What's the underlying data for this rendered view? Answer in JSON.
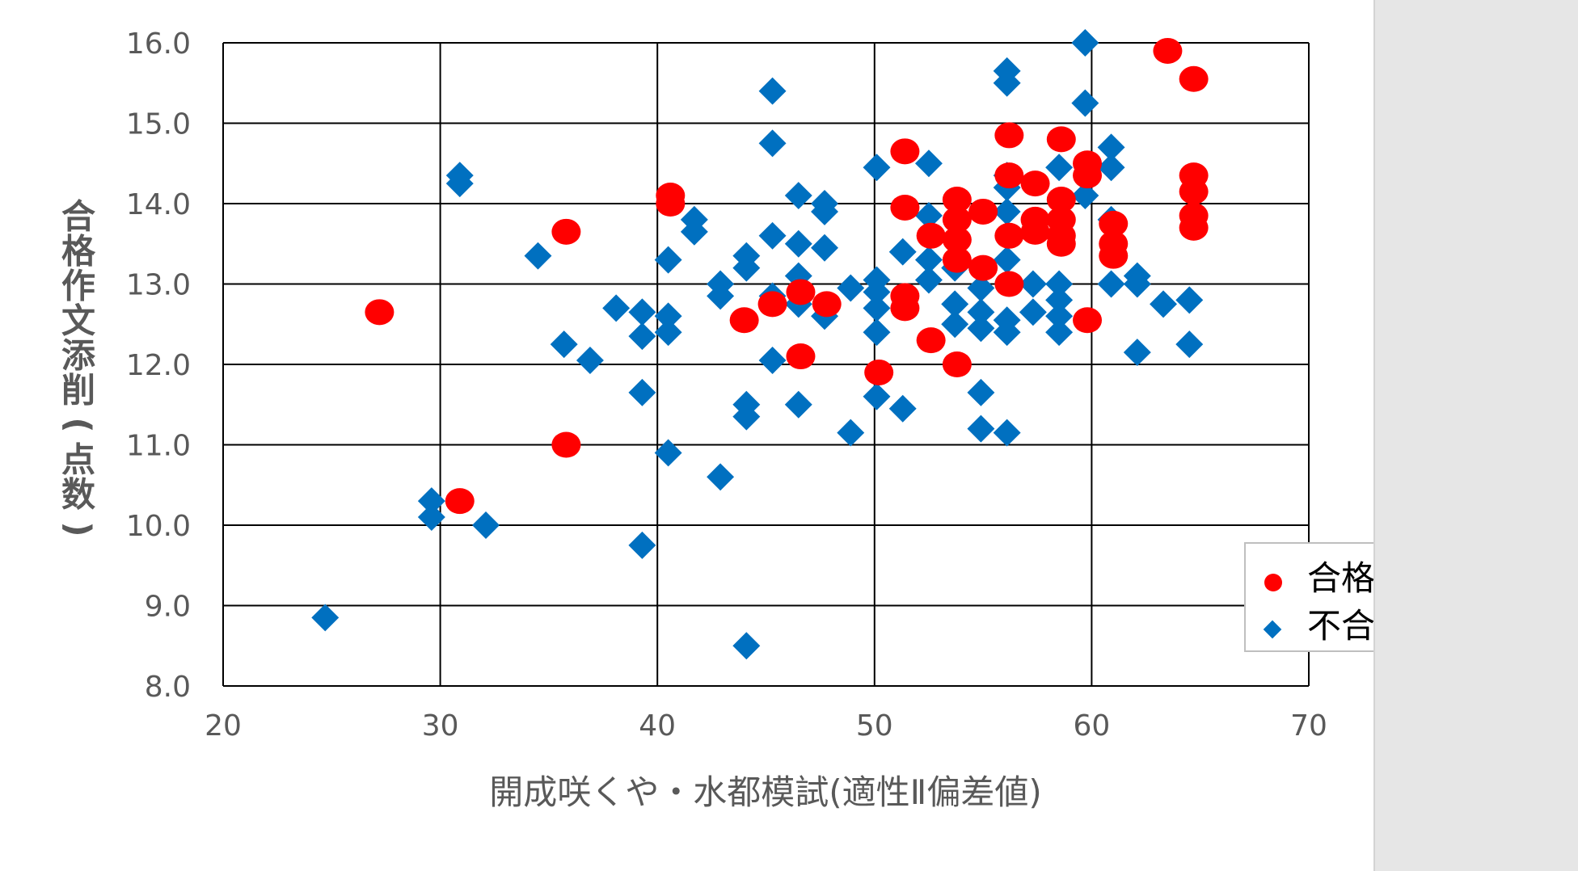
{
  "chart_data": {
    "type": "scatter",
    "xlabel": "開成咲くや・水都模試(適性Ⅱ偏差値)",
    "ylabel_chars": [
      "合",
      "格",
      "作",
      "文",
      "添",
      "削",
      "(",
      "点",
      "数",
      ")"
    ],
    "xlim": [
      20,
      70
    ],
    "ylim": [
      8,
      16
    ],
    "x_ticks": [
      "20",
      "30",
      "40",
      "50",
      "60",
      "70"
    ],
    "y_ticks": [
      "8.0",
      "9.0",
      "10.0",
      "11.0",
      "12.0",
      "13.0",
      "14.0",
      "15.0",
      "16.0"
    ],
    "grid": true,
    "legend_position": "right",
    "series": [
      {
        "name": "合格者",
        "marker": "circle",
        "color": "#ff0000",
        "points": [
          [
            27.2,
            12.65
          ],
          [
            30.9,
            10.3
          ],
          [
            35.8,
            13.65
          ],
          [
            35.8,
            11.0
          ],
          [
            40.6,
            14.1
          ],
          [
            40.6,
            14.0
          ],
          [
            44.0,
            12.55
          ],
          [
            45.3,
            12.75
          ],
          [
            46.6,
            12.9
          ],
          [
            46.6,
            12.1
          ],
          [
            47.8,
            12.75
          ],
          [
            50.2,
            11.9
          ],
          [
            51.4,
            14.65
          ],
          [
            51.4,
            13.95
          ],
          [
            51.4,
            12.85
          ],
          [
            51.4,
            12.7
          ],
          [
            52.6,
            13.6
          ],
          [
            52.6,
            12.3
          ],
          [
            53.8,
            14.05
          ],
          [
            53.8,
            13.8
          ],
          [
            53.8,
            13.55
          ],
          [
            53.8,
            13.3
          ],
          [
            53.8,
            12.0
          ],
          [
            55.0,
            13.9
          ],
          [
            55.0,
            13.2
          ],
          [
            56.2,
            14.85
          ],
          [
            56.2,
            14.35
          ],
          [
            56.2,
            13.6
          ],
          [
            56.2,
            13.0
          ],
          [
            57.4,
            14.25
          ],
          [
            57.4,
            13.8
          ],
          [
            57.4,
            13.65
          ],
          [
            58.6,
            14.8
          ],
          [
            58.6,
            14.05
          ],
          [
            58.6,
            13.8
          ],
          [
            58.6,
            13.6
          ],
          [
            58.6,
            13.5
          ],
          [
            59.8,
            14.5
          ],
          [
            59.8,
            14.35
          ],
          [
            59.8,
            12.55
          ],
          [
            61.0,
            13.75
          ],
          [
            61.0,
            13.5
          ],
          [
            61.0,
            13.35
          ],
          [
            63.5,
            15.9
          ],
          [
            64.7,
            15.55
          ],
          [
            64.7,
            14.35
          ],
          [
            64.7,
            14.15
          ],
          [
            64.7,
            13.85
          ],
          [
            64.7,
            13.7
          ]
        ]
      },
      {
        "name": "不合格者",
        "marker": "diamond",
        "color": "#0070c0",
        "points": [
          [
            24.7,
            8.85
          ],
          [
            29.6,
            10.3
          ],
          [
            29.6,
            10.1
          ],
          [
            30.9,
            14.35
          ],
          [
            30.9,
            14.25
          ],
          [
            32.1,
            10.0
          ],
          [
            34.5,
            13.35
          ],
          [
            35.7,
            12.25
          ],
          [
            36.9,
            12.05
          ],
          [
            38.1,
            12.7
          ],
          [
            39.3,
            12.65
          ],
          [
            39.3,
            12.35
          ],
          [
            39.3,
            11.65
          ],
          [
            39.3,
            9.75
          ],
          [
            40.5,
            13.3
          ],
          [
            40.5,
            12.6
          ],
          [
            40.5,
            12.4
          ],
          [
            40.5,
            10.9
          ],
          [
            41.7,
            13.8
          ],
          [
            41.7,
            13.65
          ],
          [
            42.9,
            13.0
          ],
          [
            42.9,
            12.85
          ],
          [
            42.9,
            10.6
          ],
          [
            44.1,
            13.35
          ],
          [
            44.1,
            13.2
          ],
          [
            44.1,
            11.5
          ],
          [
            44.1,
            11.35
          ],
          [
            44.1,
            8.5
          ],
          [
            45.3,
            15.4
          ],
          [
            45.3,
            14.75
          ],
          [
            45.3,
            13.6
          ],
          [
            45.3,
            12.85
          ],
          [
            45.3,
            12.05
          ],
          [
            46.5,
            14.1
          ],
          [
            46.5,
            13.5
          ],
          [
            46.5,
            13.1
          ],
          [
            46.5,
            12.75
          ],
          [
            46.5,
            11.5
          ],
          [
            47.7,
            14.0
          ],
          [
            47.7,
            13.9
          ],
          [
            47.7,
            13.45
          ],
          [
            47.7,
            12.6
          ],
          [
            48.9,
            12.95
          ],
          [
            48.9,
            11.15
          ],
          [
            50.1,
            14.45
          ],
          [
            50.1,
            13.05
          ],
          [
            50.1,
            12.9
          ],
          [
            50.1,
            12.7
          ],
          [
            50.1,
            12.4
          ],
          [
            50.1,
            11.6
          ],
          [
            51.3,
            13.4
          ],
          [
            51.3,
            11.45
          ],
          [
            52.5,
            14.5
          ],
          [
            52.5,
            13.85
          ],
          [
            52.5,
            13.3
          ],
          [
            52.5,
            13.05
          ],
          [
            53.7,
            13.2
          ],
          [
            53.7,
            12.75
          ],
          [
            53.7,
            12.5
          ],
          [
            54.9,
            12.95
          ],
          [
            54.9,
            12.65
          ],
          [
            54.9,
            12.45
          ],
          [
            54.9,
            11.65
          ],
          [
            54.9,
            11.2
          ],
          [
            56.1,
            15.65
          ],
          [
            56.1,
            15.5
          ],
          [
            56.1,
            14.35
          ],
          [
            56.1,
            14.2
          ],
          [
            56.1,
            13.9
          ],
          [
            56.1,
            13.3
          ],
          [
            56.1,
            12.55
          ],
          [
            56.1,
            12.4
          ],
          [
            56.1,
            11.15
          ],
          [
            57.3,
            13.0
          ],
          [
            57.3,
            12.65
          ],
          [
            58.5,
            14.45
          ],
          [
            58.5,
            13.0
          ],
          [
            58.5,
            12.8
          ],
          [
            58.5,
            12.6
          ],
          [
            58.5,
            12.4
          ],
          [
            59.7,
            16.0
          ],
          [
            59.7,
            15.25
          ],
          [
            59.7,
            14.1
          ],
          [
            60.9,
            14.7
          ],
          [
            60.9,
            14.45
          ],
          [
            60.9,
            13.8
          ],
          [
            60.9,
            13.0
          ],
          [
            62.1,
            13.1
          ],
          [
            62.1,
            13.0
          ],
          [
            62.1,
            12.15
          ],
          [
            63.3,
            12.75
          ],
          [
            64.5,
            12.8
          ],
          [
            64.5,
            12.25
          ]
        ]
      }
    ]
  },
  "colors": {
    "panel_background": "#ffffff",
    "outer_background": "#e6e6e6",
    "gridline": "#000000",
    "tick_text": "#595959"
  }
}
